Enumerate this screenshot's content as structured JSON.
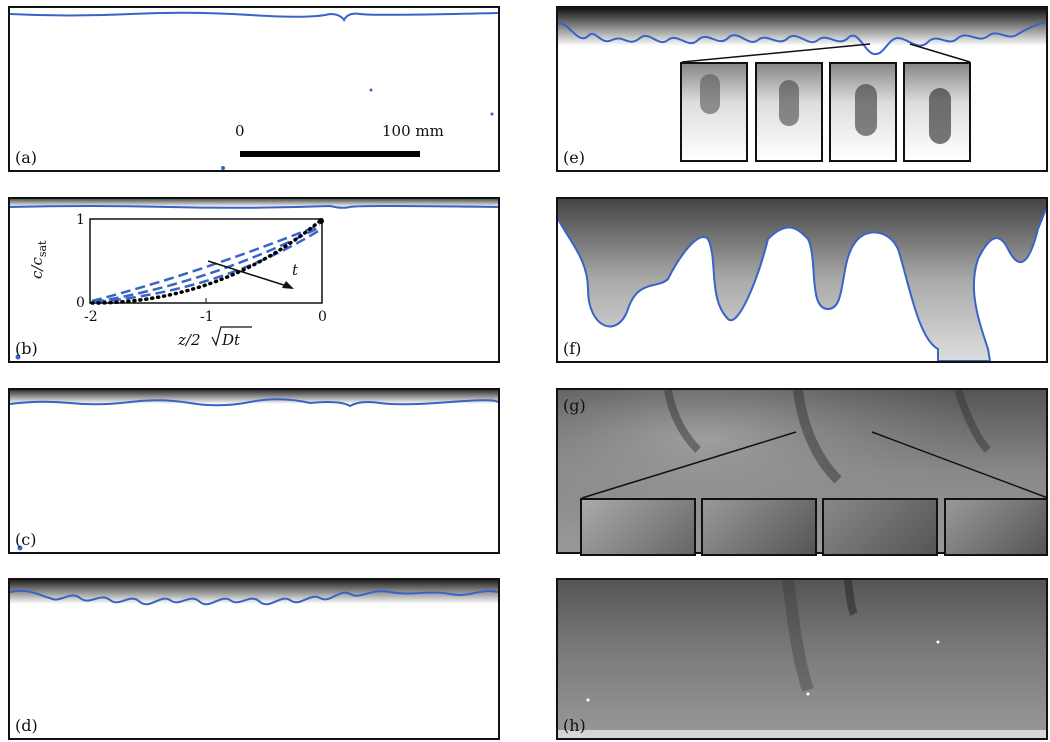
{
  "panels": {
    "a": {
      "label": "(a)"
    },
    "b": {
      "label": "(b)"
    },
    "c": {
      "label": "(c)"
    },
    "d": {
      "label": "(d)"
    },
    "e": {
      "label": "(e)"
    },
    "f": {
      "label": "(f)"
    },
    "g": {
      "label": "(g)"
    },
    "h": {
      "label": "(h)"
    }
  },
  "scale_bar": {
    "start_label": "0",
    "end_label": "100 mm"
  },
  "inset_plot": {
    "ylabel_main": "c/c",
    "ylabel_sub": "sat",
    "xlabel_main": "z/2",
    "xlabel_root": "Dt",
    "arrow_label": "t",
    "x_ticks": [
      "-2",
      "-1",
      "0"
    ],
    "y_ticks": [
      "0",
      "1"
    ]
  },
  "colors": {
    "interface": "#3a63c8",
    "frame": "#111111",
    "fit": "#000000"
  }
}
